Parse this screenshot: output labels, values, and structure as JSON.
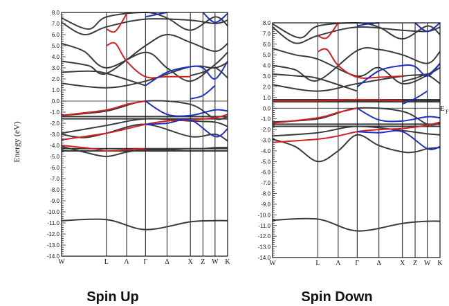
{
  "colors": {
    "black": "#3a3a3a",
    "red": "#d42020",
    "blue": "#1d2fc8",
    "frame": "#111111"
  },
  "fermi_label": "E",
  "fermi_sub": "F",
  "chart_data": [
    {
      "type": "line",
      "panel": "spin-up",
      "caption": "Spin Up",
      "ylabel": "Energy (eV)",
      "ylim": [
        -14,
        8
      ],
      "y_ticks": [
        "8.0",
        "7.0",
        "6.0",
        "5.0",
        "4.0",
        "3.0",
        "2.0",
        "1.0",
        "0.0",
        "-1.0",
        "-2.0",
        "-3.0",
        "-4.0",
        "-5.0",
        "-6.0",
        "-7.0",
        "-8.0",
        "-9.0",
        "-10.0",
        "-11.0",
        "-12.0",
        "-13.0",
        "-14.0"
      ],
      "k_points": [
        "W",
        "L",
        "Λ",
        "Γ",
        "Δ",
        "X",
        "Z",
        "W",
        "K"
      ],
      "k_pos": [
        0,
        1,
        1.45,
        1.87,
        2.35,
        2.87,
        3.15,
        3.42,
        3.7
      ],
      "hlines": [
        0,
        -1.4,
        -1.6,
        -4.3,
        -4.5
      ],
      "series": [
        {
          "color": "black",
          "x": [
            0,
            1,
            1.87,
            2.87,
            3.42,
            3.7
          ],
          "y": [
            -10.8,
            -10.7,
            -11.6,
            -10.9,
            -10.8,
            -10.8
          ]
        },
        {
          "color": "black",
          "x": [
            0,
            0.5,
            1,
            1.45,
            1.87,
            2.35,
            2.87,
            3.15,
            3.42,
            3.7
          ],
          "y": [
            -4.1,
            -4.6,
            -5.0,
            -4.6,
            -4.4,
            -4.4,
            -4.3,
            -4.3,
            -4.2,
            -4.2
          ]
        },
        {
          "color": "black",
          "x": [
            0,
            0.5,
            1,
            1.87,
            2.87,
            3.42,
            3.7
          ],
          "y": [
            -3.0,
            -3.3,
            -2.9,
            -2.1,
            -3.2,
            -3.0,
            -3.6
          ]
        },
        {
          "color": "black",
          "x": [
            0,
            1,
            1.87,
            2.87,
            3.42,
            3.7
          ],
          "y": [
            -2.9,
            -2.2,
            -1.6,
            -1.8,
            -1.9,
            -2.3
          ]
        },
        {
          "color": "black",
          "x": [
            0,
            1,
            1.87,
            2.87,
            3.42,
            3.7
          ],
          "y": [
            -1.3,
            -0.9,
            0.0,
            -0.3,
            -1.6,
            -1.4
          ]
        },
        {
          "color": "black",
          "x": [
            0,
            0.6,
            1,
            1.87
          ],
          "y": [
            2.6,
            2.7,
            2.5,
            1.4
          ]
        },
        {
          "color": "black",
          "x": [
            0,
            1,
            1.87,
            2.87,
            3.42,
            3.7
          ],
          "y": [
            1.6,
            1.2,
            1.8,
            3.1,
            3.0,
            3.5
          ]
        },
        {
          "color": "black",
          "x": [
            0,
            0.6,
            1,
            1.87,
            2.35,
            2.87,
            3.42,
            3.7
          ],
          "y": [
            3.6,
            3.2,
            2.5,
            5.0,
            6.0,
            5.3,
            4.5,
            5.2
          ]
        },
        {
          "color": "black",
          "x": [
            0,
            0.5,
            1,
            1.87,
            2.35,
            2.87,
            3.42,
            3.7
          ],
          "y": [
            5.2,
            4.5,
            3.0,
            4.4,
            3.0,
            1.8,
            3.3,
            4.4
          ]
        },
        {
          "color": "black",
          "x": [
            0,
            0.5,
            1,
            1.87,
            2.87,
            3.42,
            3.7
          ],
          "y": [
            7.1,
            6.0,
            6.7,
            7.4,
            7.3,
            7.0,
            7.3
          ]
        },
        {
          "color": "black",
          "x": [
            0,
            0.6,
            1,
            1.87,
            2.35,
            2.87,
            3.42,
            3.7
          ],
          "y": [
            7.5,
            6.5,
            7.6,
            8.0,
            7.5,
            6.4,
            7.6,
            6.8
          ]
        },
        {
          "color": "black",
          "x": [
            2.87,
            3.15,
            3.42,
            3.7
          ],
          "y": [
            2.3,
            2.6,
            3.0,
            2.1
          ]
        },
        {
          "color": "red",
          "x": [
            0,
            1,
            1.45,
            1.87
          ],
          "y": [
            -1.3,
            -0.8,
            -0.3,
            0.0
          ]
        },
        {
          "color": "red",
          "x": [
            0,
            1,
            1.45,
            1.87,
            2.35,
            2.87,
            3.42,
            3.7
          ],
          "y": [
            -3.5,
            -2.9,
            -2.5,
            -2.1,
            -1.8,
            -1.7,
            -1.5,
            -1.2
          ]
        },
        {
          "color": "red",
          "x": [
            1,
            1.2,
            1.45,
            1.87,
            2.35,
            2.87
          ],
          "y": [
            5.0,
            5.2,
            3.6,
            2.2,
            2.2,
            2.2
          ]
        },
        {
          "color": "red",
          "x": [
            1,
            1.2,
            1.45
          ],
          "y": [
            6.5,
            6.3,
            7.9
          ]
        },
        {
          "color": "red",
          "x": [
            0,
            0.7,
            1,
            1.45,
            1.87
          ],
          "y": [
            -4.0,
            -4.3,
            -4.5,
            -4.4,
            -4.3
          ]
        },
        {
          "color": "blue",
          "x": [
            1.87,
            2.35,
            2.87,
            3.42,
            3.7
          ],
          "y": [
            0.0,
            -1.2,
            -1.3,
            -0.8,
            -0.9
          ]
        },
        {
          "color": "blue",
          "x": [
            1.87,
            2.35,
            2.87,
            3.42,
            3.7
          ],
          "y": [
            -2.1,
            -2.0,
            -1.7,
            -3.2,
            -2.5
          ]
        },
        {
          "color": "blue",
          "x": [
            1.87,
            2.35,
            2.87,
            3.15,
            3.42,
            3.7
          ],
          "y": [
            1.4,
            2.6,
            3.1,
            3.0,
            2.0,
            3.6
          ]
        },
        {
          "color": "blue",
          "x": [
            2.87,
            3.15,
            3.42
          ],
          "y": [
            0.2,
            0.5,
            1.4
          ]
        },
        {
          "color": "blue",
          "x": [
            1.87,
            2.1,
            2.35
          ],
          "y": [
            7.6,
            7.8,
            8.0
          ]
        },
        {
          "color": "blue",
          "x": [
            3.15,
            3.42,
            3.7
          ],
          "y": [
            8.0,
            7.1,
            7.9
          ]
        }
      ]
    },
    {
      "type": "line",
      "panel": "spin-down",
      "caption": "Spin Down",
      "ylabel": "",
      "ylim": [
        -14,
        8
      ],
      "y_ticks": [
        "8.0",
        "7.0",
        "6.0",
        "5.0",
        "4.0",
        "3.0",
        "2.0",
        "1.0",
        "0.0",
        "-1.0",
        "-2.0",
        "-3.0",
        "-4.0",
        "-5.0",
        "-6.0",
        "-7.0",
        "-8.0",
        "-9.0",
        "-10.0",
        "-11.0",
        "-12.0",
        "-13.0",
        "-14.0"
      ],
      "k_points": [
        "W",
        "L",
        "Λ",
        "Γ",
        "Δ",
        "X",
        "Z",
        "W",
        "K"
      ],
      "k_pos": [
        0,
        1,
        1.45,
        1.87,
        2.35,
        2.87,
        3.15,
        3.42,
        3.7
      ],
      "hlines": [
        0,
        0.6,
        0.7,
        0.8,
        -1.5,
        -1.7
      ],
      "series": [
        {
          "color": "black",
          "x": [
            0,
            1,
            1.87,
            2.87,
            3.42,
            3.7
          ],
          "y": [
            -10.5,
            -10.4,
            -11.5,
            -10.8,
            -10.6,
            -10.6
          ]
        },
        {
          "color": "black",
          "x": [
            0,
            0.5,
            1,
            1.45,
            1.87,
            2.35,
            2.87,
            3.15,
            3.42,
            3.7
          ],
          "y": [
            -2.9,
            -3.6,
            -5.0,
            -4.0,
            -2.5,
            -3.5,
            -4.1,
            -4.1,
            -3.8,
            -3.7
          ]
        },
        {
          "color": "black",
          "x": [
            0,
            1,
            1.87,
            2.87,
            3.42,
            3.7
          ],
          "y": [
            -2.6,
            -2.3,
            -1.7,
            -2.1,
            -2.4,
            -2.5
          ]
        },
        {
          "color": "black",
          "x": [
            0,
            1,
            1.87,
            2.87,
            3.42,
            3.7
          ],
          "y": [
            -1.3,
            -1.0,
            0.0,
            -0.3,
            -1.5,
            -1.4
          ]
        },
        {
          "color": "black",
          "x": [
            0,
            1,
            1.87,
            2.87,
            3.42,
            3.7
          ],
          "y": [
            2.2,
            1.6,
            2.3,
            3.0,
            3.2,
            3.8
          ]
        },
        {
          "color": "black",
          "x": [
            0,
            0.6,
            1,
            1.87
          ],
          "y": [
            3.2,
            3.0,
            2.8,
            1.6
          ]
        },
        {
          "color": "black",
          "x": [
            0,
            0.5,
            1,
            1.87,
            2.35,
            2.87,
            3.42,
            3.7
          ],
          "y": [
            4.0,
            3.6,
            2.6,
            5.4,
            5.5,
            5.0,
            4.2,
            5.3
          ]
        },
        {
          "color": "black",
          "x": [
            0,
            0.5,
            1,
            1.87,
            2.35,
            2.87,
            3.42,
            3.7
          ],
          "y": [
            5.6,
            5.0,
            4.6,
            3.0,
            3.8,
            2.3,
            3.1,
            4.2
          ]
        },
        {
          "color": "black",
          "x": [
            0,
            0.5,
            1,
            1.87,
            2.87,
            3.42,
            3.7
          ],
          "y": [
            7.6,
            6.1,
            6.8,
            7.6,
            7.3,
            7.2,
            7.6
          ]
        },
        {
          "color": "black",
          "x": [
            0,
            0.6,
            1,
            1.87,
            2.35,
            2.87,
            3.42,
            3.7
          ],
          "y": [
            7.9,
            6.6,
            7.7,
            8.0,
            7.6,
            6.5,
            7.7,
            6.9
          ]
        },
        {
          "color": "black",
          "x": [
            2.87,
            3.15,
            3.42,
            3.7
          ],
          "y": [
            2.5,
            2.8,
            3.1,
            2.3
          ]
        },
        {
          "color": "red",
          "x": [
            0,
            1,
            1.45,
            1.87
          ],
          "y": [
            -1.4,
            -0.9,
            -0.4,
            0.0
          ]
        },
        {
          "color": "red",
          "x": [
            0,
            1,
            1.45,
            1.87,
            2.35,
            2.87,
            3.42,
            3.7
          ],
          "y": [
            -3.2,
            -2.9,
            -2.6,
            -2.2,
            -2.0,
            -1.9,
            -1.6,
            -1.3
          ]
        },
        {
          "color": "red",
          "x": [
            1,
            1.2,
            1.45,
            1.87,
            2.35,
            2.87
          ],
          "y": [
            5.3,
            5.5,
            4.0,
            2.9,
            2.9,
            3.0
          ]
        },
        {
          "color": "red",
          "x": [
            1,
            1.2,
            1.45
          ],
          "y": [
            6.8,
            6.6,
            8.0
          ]
        },
        {
          "color": "red",
          "x": [
            0,
            1,
            1.87,
            2.87
          ],
          "y": [
            0.7,
            0.7,
            0.8,
            0.7
          ]
        },
        {
          "color": "blue",
          "x": [
            1.87,
            2.35,
            2.87,
            3.42,
            3.7
          ],
          "y": [
            0.0,
            -1.1,
            -1.2,
            -0.8,
            -0.9
          ]
        },
        {
          "color": "blue",
          "x": [
            1.87,
            2.35,
            2.87,
            3.42,
            3.7
          ],
          "y": [
            -2.2,
            -2.3,
            -2.2,
            -3.8,
            -3.6
          ]
        },
        {
          "color": "blue",
          "x": [
            1.87,
            2.35,
            2.87,
            3.15,
            3.42,
            3.7
          ],
          "y": [
            2.0,
            3.5,
            4.0,
            3.9,
            3.0,
            4.2
          ]
        },
        {
          "color": "blue",
          "x": [
            2.87,
            3.15,
            3.42
          ],
          "y": [
            0.4,
            0.9,
            1.6
          ]
        },
        {
          "color": "blue",
          "x": [
            1.87,
            2.1,
            2.35
          ],
          "y": [
            7.7,
            7.9,
            8.0
          ]
        },
        {
          "color": "blue",
          "x": [
            3.15,
            3.42,
            3.7
          ],
          "y": [
            8.0,
            7.2,
            8.0
          ]
        }
      ]
    }
  ]
}
